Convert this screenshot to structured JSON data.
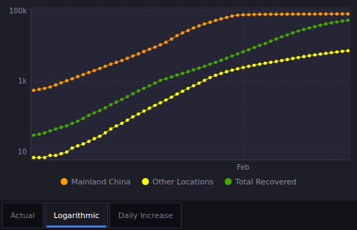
{
  "chart_data": {
    "type": "line",
    "log": "y",
    "grid": true,
    "legend": "bottom",
    "marker": "circle",
    "annotations": [
      "Actual",
      "Logarithmic",
      "Daily Increase"
    ],
    "categories": [
      null,
      null,
      null,
      null,
      null,
      null,
      null,
      null,
      null,
      null,
      null,
      null,
      null,
      null,
      null,
      null,
      null,
      null,
      null,
      null,
      null,
      null,
      null,
      null,
      null,
      null,
      null,
      null,
      null,
      null,
      null,
      null,
      null,
      null,
      null,
      null,
      null,
      null,
      "Feb",
      null,
      null,
      null,
      null,
      null,
      null,
      null,
      null,
      null,
      null,
      null,
      null,
      null,
      null,
      null,
      null,
      null,
      null,
      null
    ],
    "ylim": [
      6,
      130000
    ],
    "yticks": [
      10,
      {
        "value": 1000,
        "label": "1k"
      },
      {
        "value": 100000,
        "label": "100k"
      }
    ],
    "series": [
      {
        "name": "Mainland China",
        "color": "#ff9900",
        "values": [
          560,
          600,
          640,
          700,
          800,
          920,
          1050,
          1200,
          1380,
          1580,
          1800,
          2050,
          2350,
          2700,
          3100,
          3500,
          3950,
          4550,
          5300,
          6100,
          7100,
          8200,
          9500,
          11000,
          13000,
          16000,
          20000,
          24000,
          28000,
          33000,
          38000,
          43000,
          48000,
          54000,
          60000,
          66000,
          72000,
          76000,
          78000,
          79000,
          80000,
          80500,
          80700,
          80900,
          81000,
          81200,
          81300,
          81500,
          81700,
          81900,
          82000,
          82100,
          82200,
          82300,
          82400,
          82500,
          82600,
          82700
        ]
      },
      {
        "name": "Other Locations",
        "color": "#ffff00",
        "values": [
          7,
          7,
          7,
          8,
          8,
          9,
          10,
          13,
          15,
          17,
          20,
          24,
          28,
          35,
          45,
          55,
          65,
          80,
          100,
          120,
          145,
          175,
          210,
          250,
          300,
          360,
          440,
          530,
          640,
          760,
          900,
          1080,
          1300,
          1500,
          1700,
          1900,
          2100,
          2300,
          2500,
          2700,
          2900,
          3100,
          3300,
          3500,
          3700,
          3950,
          4200,
          4500,
          4800,
          5100,
          5400,
          5700,
          6000,
          6300,
          6600,
          6900,
          7200,
          7500
        ]
      },
      {
        "name": "Total Recovered",
        "color": "#44aa00",
        "values": [
          30,
          32,
          35,
          40,
          45,
          50,
          55,
          65,
          75,
          90,
          110,
          130,
          150,
          180,
          220,
          260,
          310,
          370,
          450,
          540,
          640,
          760,
          900,
          1080,
          1200,
          1350,
          1520,
          1700,
          1900,
          2150,
          2400,
          2700,
          3100,
          3500,
          4000,
          4600,
          5300,
          6100,
          7000,
          8000,
          9200,
          10600,
          12000,
          14000,
          16000,
          18500,
          21000,
          24000,
          27000,
          30000,
          33000,
          36000,
          39500,
          43000,
          46000,
          49000,
          52000,
          55000
        ]
      }
    ]
  }
}
